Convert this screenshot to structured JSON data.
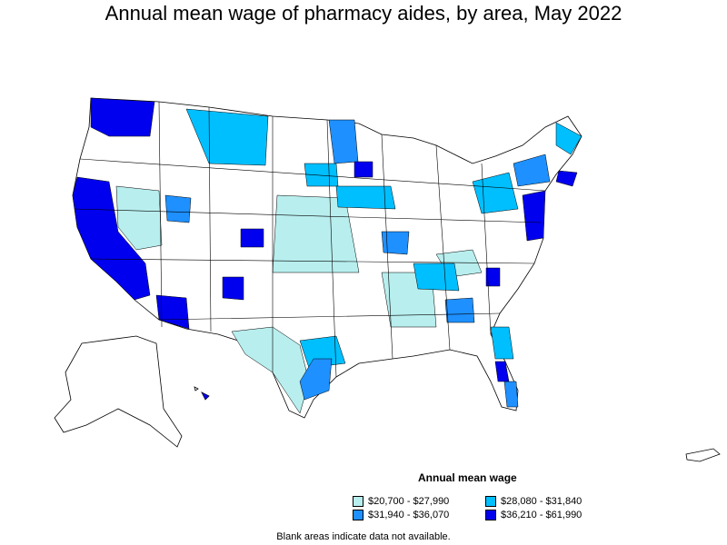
{
  "title": "Annual mean wage of pharmacy aides, by area, May 2022",
  "legend": {
    "title": "Annual mean wage",
    "items": [
      {
        "label": "$20,700 - $27,990",
        "color": "#b8eeee"
      },
      {
        "label": "$28,080 - $31,840",
        "color": "#00bfff"
      },
      {
        "label": "$31,940 - $36,070",
        "color": "#1e90ff"
      },
      {
        "label": "$36,210 - $61,990",
        "color": "#0000ee"
      }
    ]
  },
  "note": "Blank areas indicate data not available."
}
